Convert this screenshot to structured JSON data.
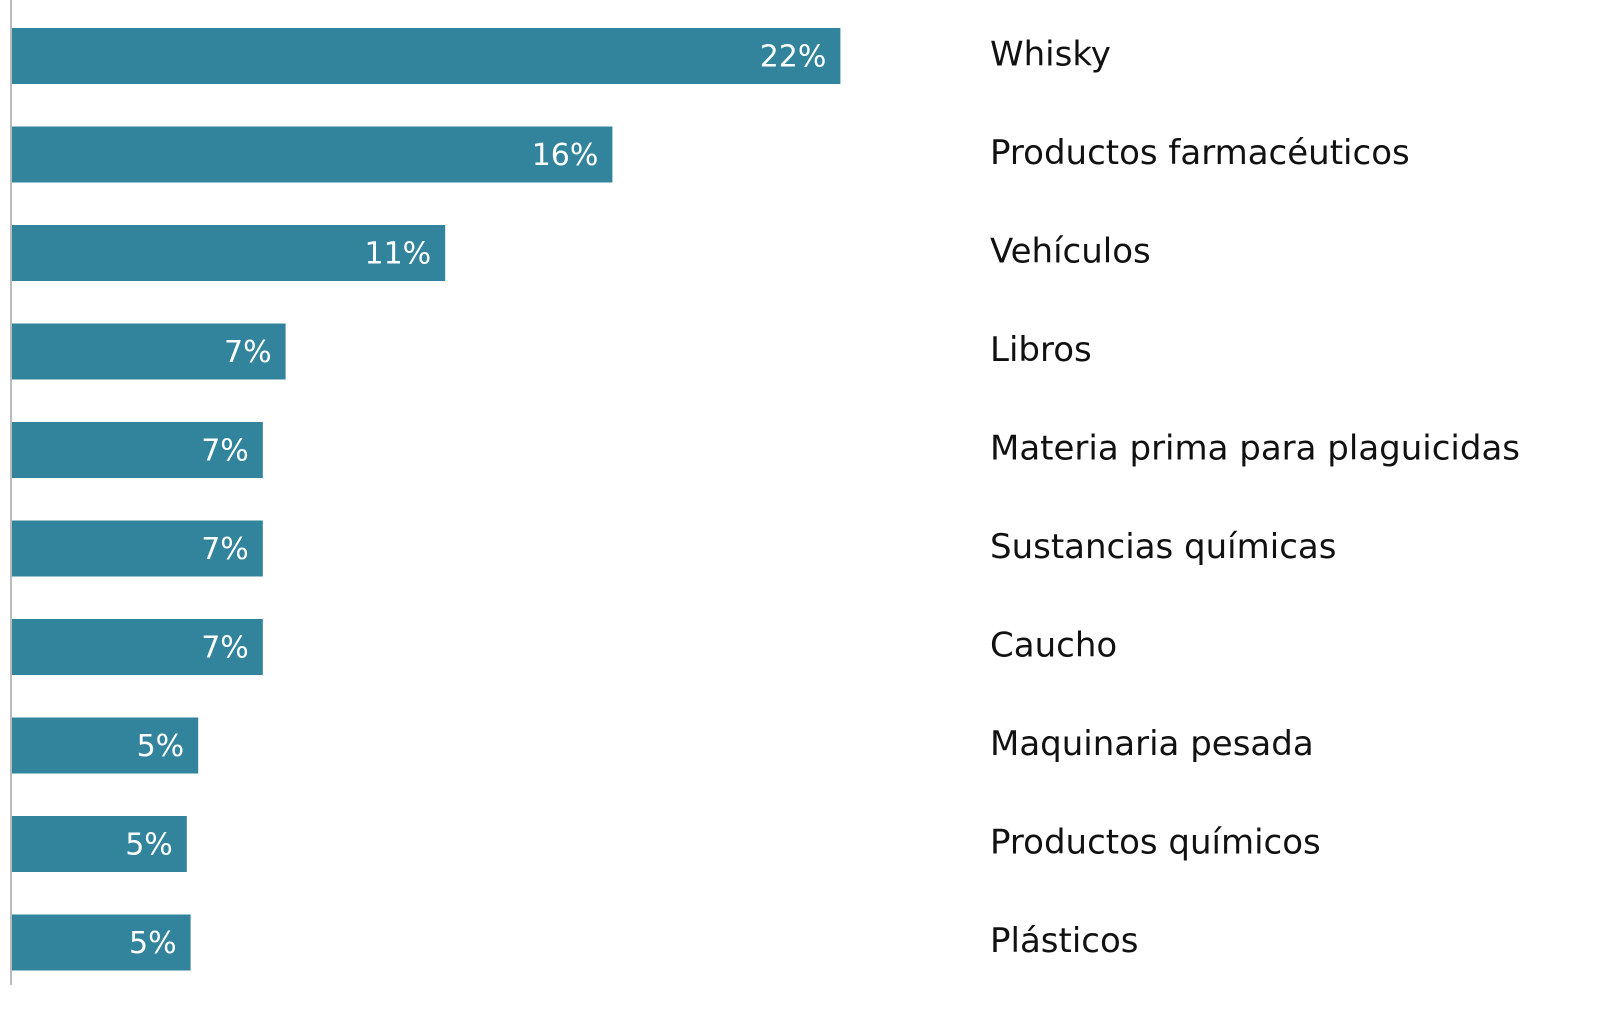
{
  "chart_data": {
    "type": "hbar",
    "categories": [
      "Whisky",
      "Productos farmacéuticos",
      "Vehículos",
      "Libros",
      "Materia prima para plaguicidas",
      "Sustancias químicas",
      "Caucho",
      "Maquinaria pesada",
      "Productos químicos",
      "Plásticos"
    ],
    "values": [
      21.8,
      15.8,
      11.4,
      7.2,
      6.6,
      6.6,
      6.6,
      4.9,
      4.6,
      4.7
    ],
    "value_labels": [
      "22%",
      "16%",
      "11%",
      "7%",
      "7%",
      "7%",
      "7%",
      "5%",
      "5%",
      "5%"
    ],
    "color": "#31849b",
    "xlim": [
      0,
      40
    ]
  }
}
